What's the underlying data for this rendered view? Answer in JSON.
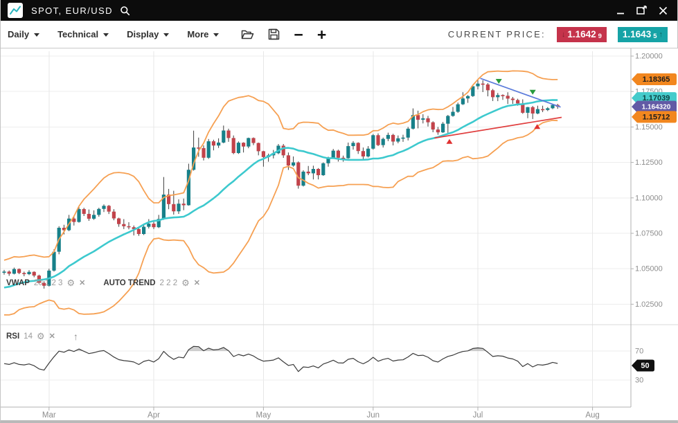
{
  "window": {
    "title": "SPOT, EUR/USD",
    "controls": {
      "minimize": "minimize",
      "popout": "popout",
      "close": "close"
    }
  },
  "toolbar": {
    "menus": [
      "Daily",
      "Technical",
      "Display",
      "More"
    ],
    "icons": [
      "open-file",
      "save",
      "zoom-out",
      "zoom-in"
    ],
    "current_price_label": "CURRENT PRICE:",
    "bid": {
      "main": "1.1642",
      "sub": "9",
      "color": "#C5334B",
      "arrow": "down"
    },
    "ask": {
      "main": "1.1643",
      "sub": "5",
      "color": "#16A3A6",
      "arrow": "up"
    }
  },
  "chart_data": {
    "type": "candlestick",
    "symbol": "SPOT, EUR/USD",
    "timeframe": "Daily",
    "y_axis": {
      "ticks": [
        "1.20000",
        "1.17500",
        "1.15000",
        "1.12500",
        "1.10000",
        "1.07500",
        "1.05000",
        "1.02500"
      ]
    },
    "x_axis": {
      "months": [
        {
          "label": "Mar",
          "i": 9
        },
        {
          "label": "Apr",
          "i": 30
        },
        {
          "label": "May",
          "i": 52
        },
        {
          "label": "Jun",
          "i": 74
        },
        {
          "label": "Jul",
          "i": 95
        },
        {
          "label": "Aug",
          "i": 118
        }
      ]
    },
    "candles": {
      "bull_color": "#178089",
      "bear_color": "#C2434B",
      "wick_color": "#3C3C3C",
      "seed_closes": [
        1.043,
        1.0352,
        1.0273,
        1.0221,
        1.0305,
        1.0338,
        1.039,
        1.0282,
        1.03,
        1.0332,
        1.0365,
        1.0398,
        1.0305,
        1.0238,
        1.0412,
        1.0465,
        1.0442,
        1.048,
        1.0493,
        1.0475
      ],
      "ohlc": [
        [
          1.0472,
          1.0492,
          1.0458,
          1.048
        ],
        [
          1.048,
          1.0488,
          1.045,
          1.0465
        ],
        [
          1.0465,
          1.0508,
          1.046,
          1.0498
        ],
        [
          1.0498,
          1.0502,
          1.0462,
          1.047
        ],
        [
          1.047,
          1.048,
          1.0447,
          1.0462
        ],
        [
          1.0462,
          1.049,
          1.0455,
          1.0478
        ],
        [
          1.0478,
          1.0482,
          1.044,
          1.0452
        ],
        [
          1.0452,
          1.0458,
          1.0392,
          1.04
        ],
        [
          1.04,
          1.0412,
          1.036,
          1.038
        ],
        [
          1.038,
          1.05,
          1.0375,
          1.0487
        ],
        [
          1.0487,
          1.0637,
          1.048,
          1.062
        ],
        [
          1.062,
          1.08,
          1.0602,
          1.0789
        ],
        [
          1.0789,
          1.081,
          1.0742,
          1.0772
        ],
        [
          1.0772,
          1.088,
          1.0765,
          1.0854
        ],
        [
          1.0854,
          1.0875,
          1.0805,
          1.083
        ],
        [
          1.083,
          1.0935,
          1.0825,
          1.0921
        ],
        [
          1.0921,
          1.093,
          1.0872,
          1.0887
        ],
        [
          1.0887,
          1.0918,
          1.0838,
          1.0853
        ],
        [
          1.0853,
          1.0912,
          1.0845,
          1.088
        ],
        [
          1.088,
          1.093,
          1.0867,
          1.0922
        ],
        [
          1.0922,
          1.0954,
          1.09,
          1.0944
        ],
        [
          1.0944,
          1.095,
          1.0886,
          1.0903
        ],
        [
          1.0903,
          1.092,
          1.0842,
          1.0855
        ],
        [
          1.0855,
          1.086,
          1.0796,
          1.0815
        ],
        [
          1.0815,
          1.085,
          1.078,
          1.08
        ],
        [
          1.08,
          1.0828,
          1.0778,
          1.0793
        ],
        [
          1.0793,
          1.0805,
          1.0735,
          1.078
        ],
        [
          1.078,
          1.0785,
          1.0732,
          1.0745
        ],
        [
          1.0745,
          1.081,
          1.0738,
          1.0796
        ],
        [
          1.0796,
          1.085,
          1.0784,
          1.0818
        ],
        [
          1.0818,
          1.0832,
          1.078,
          1.0793
        ],
        [
          1.0793,
          1.088,
          1.0787,
          1.0851
        ],
        [
          1.0851,
          1.1147,
          1.0845,
          1.1023
        ],
        [
          1.1023,
          1.1063,
          1.092,
          1.0956
        ],
        [
          1.0956,
          1.105,
          1.0882,
          1.0905
        ],
        [
          1.0905,
          1.099,
          1.0887,
          1.0959
        ],
        [
          1.0959,
          1.0995,
          1.0913,
          1.0948
        ],
        [
          1.0948,
          1.1241,
          1.0945,
          1.1198
        ],
        [
          1.1198,
          1.1474,
          1.1192,
          1.1355
        ],
        [
          1.1355,
          1.1425,
          1.129,
          1.1351
        ],
        [
          1.1351,
          1.137,
          1.1264,
          1.1283
        ],
        [
          1.1283,
          1.1415,
          1.1275,
          1.1399
        ],
        [
          1.1399,
          1.141,
          1.1335,
          1.1369
        ],
        [
          1.1369,
          1.142,
          1.1352,
          1.139
        ],
        [
          1.139,
          1.151,
          1.1385,
          1.1475
        ],
        [
          1.1475,
          1.1488,
          1.1395,
          1.1422
        ],
        [
          1.1422,
          1.144,
          1.1308,
          1.1316
        ],
        [
          1.1316,
          1.1398,
          1.131,
          1.1389
        ],
        [
          1.1389,
          1.1392,
          1.132,
          1.1362
        ],
        [
          1.1362,
          1.1425,
          1.135,
          1.1422
        ],
        [
          1.1422,
          1.1426,
          1.1372,
          1.1387
        ],
        [
          1.1387,
          1.139,
          1.13,
          1.1329
        ],
        [
          1.1329,
          1.1332,
          1.122,
          1.1288
        ],
        [
          1.1288,
          1.1312,
          1.1255,
          1.13
        ],
        [
          1.13,
          1.1338,
          1.1278,
          1.1315
        ],
        [
          1.1315,
          1.138,
          1.1308,
          1.1368
        ],
        [
          1.1368,
          1.138,
          1.1282,
          1.13
        ],
        [
          1.13,
          1.132,
          1.1197,
          1.1228
        ],
        [
          1.1228,
          1.1292,
          1.122,
          1.125
        ],
        [
          1.125,
          1.1257,
          1.1065,
          1.1086
        ],
        [
          1.1086,
          1.1195,
          1.108,
          1.1185
        ],
        [
          1.1185,
          1.1225,
          1.116,
          1.1173
        ],
        [
          1.1173,
          1.1227,
          1.113,
          1.1204
        ],
        [
          1.1204,
          1.121,
          1.113,
          1.116
        ],
        [
          1.116,
          1.125,
          1.1155,
          1.1244
        ],
        [
          1.1244,
          1.129,
          1.122,
          1.1284
        ],
        [
          1.1284,
          1.1345,
          1.128,
          1.1333
        ],
        [
          1.1333,
          1.134,
          1.1256,
          1.1283
        ],
        [
          1.1283,
          1.1298,
          1.1255,
          1.128
        ],
        [
          1.128,
          1.139,
          1.1276,
          1.1365
        ],
        [
          1.1365,
          1.14,
          1.134,
          1.1388
        ],
        [
          1.1388,
          1.1392,
          1.131,
          1.133
        ],
        [
          1.133,
          1.1355,
          1.1272,
          1.1292
        ],
        [
          1.1292,
          1.1365,
          1.1285,
          1.1347
        ],
        [
          1.1347,
          1.145,
          1.134,
          1.1442
        ],
        [
          1.1442,
          1.1455,
          1.1365,
          1.1372
        ],
        [
          1.1372,
          1.1425,
          1.1355,
          1.1416
        ],
        [
          1.1416,
          1.146,
          1.14,
          1.1444
        ],
        [
          1.1444,
          1.1452,
          1.137,
          1.1397
        ],
        [
          1.1397,
          1.144,
          1.1385,
          1.142
        ],
        [
          1.142,
          1.1445,
          1.1395,
          1.1425
        ],
        [
          1.1425,
          1.15,
          1.1405,
          1.1488
        ],
        [
          1.1488,
          1.1631,
          1.1482,
          1.1584
        ],
        [
          1.1584,
          1.1615,
          1.149,
          1.1551
        ],
        [
          1.1551,
          1.159,
          1.1525,
          1.1561
        ],
        [
          1.1561,
          1.1578,
          1.1503,
          1.1533
        ],
        [
          1.1533,
          1.154,
          1.1463,
          1.1482
        ],
        [
          1.1482,
          1.15,
          1.1445,
          1.1462
        ],
        [
          1.1462,
          1.1535,
          1.1458,
          1.1523
        ],
        [
          1.1523,
          1.1585,
          1.1448,
          1.1578
        ],
        [
          1.1578,
          1.1641,
          1.1572,
          1.1607
        ],
        [
          1.1607,
          1.1672,
          1.16,
          1.166
        ],
        [
          1.166,
          1.1745,
          1.1655,
          1.1701
        ],
        [
          1.1701,
          1.1725,
          1.167,
          1.1718
        ],
        [
          1.1718,
          1.1788,
          1.1712,
          1.1787
        ],
        [
          1.1787,
          1.183,
          1.1765,
          1.1806
        ],
        [
          1.1806,
          1.1829,
          1.1746,
          1.18
        ],
        [
          1.18,
          1.181,
          1.1716,
          1.1759
        ],
        [
          1.1759,
          1.1768,
          1.1683,
          1.171
        ],
        [
          1.171,
          1.174,
          1.1682,
          1.1725
        ],
        [
          1.1725,
          1.173,
          1.1691,
          1.172
        ],
        [
          1.172,
          1.1745,
          1.1662,
          1.17
        ],
        [
          1.17,
          1.1712,
          1.1663,
          1.169
        ],
        [
          1.169,
          1.1699,
          1.165,
          1.1666
        ],
        [
          1.1666,
          1.1695,
          1.1593,
          1.16
        ],
        [
          1.16,
          1.1642,
          1.1562,
          1.164
        ],
        [
          1.164,
          1.1648,
          1.1556,
          1.1595
        ],
        [
          1.1595,
          1.165,
          1.159,
          1.1626
        ],
        [
          1.1626,
          1.165,
          1.1605,
          1.162
        ],
        [
          1.162,
          1.164,
          1.1612,
          1.1632
        ],
        [
          1.1632,
          1.166,
          1.1626,
          1.1655
        ],
        [
          1.1655,
          1.1663,
          1.1628,
          1.1643
        ]
      ]
    },
    "indicators": {
      "vwap": {
        "name": "VWAP",
        "params": "20 1 2 3",
        "period": 20,
        "band_mult": 2.3,
        "line_color": "#3DC9CE",
        "band_color": "#F6A052"
      },
      "auto_trend": {
        "name": "AUTO TREND",
        "params": "2 2 2",
        "lines": [
          {
            "i1": 95.5,
            "p1": 1.1843,
            "i2": 111.6,
            "p2": 1.164,
            "color": "#5B7BDB"
          },
          {
            "i1": 86.3,
            "p1": 1.1422,
            "i2": 111.8,
            "p2": 1.1568,
            "color": "#E03E3E"
          }
        ],
        "markers": [
          {
            "dir": "down",
            "i": 99.2,
            "p": 1.1822,
            "color": "#279A3D"
          },
          {
            "dir": "down",
            "i": 106.0,
            "p": 1.1745,
            "color": "#279A3D"
          },
          {
            "dir": "up",
            "i": 89.3,
            "p": 1.1398,
            "color": "#E03030"
          },
          {
            "dir": "up",
            "i": 106.9,
            "p": 1.1503,
            "color": "#E03030"
          }
        ]
      },
      "rsi": {
        "name": "RSI",
        "params": "14",
        "period": 14,
        "levels": [
          70,
          30
        ],
        "axis_labels": [
          "70",
          "50",
          "30"
        ],
        "axis_values": [
          70,
          50,
          30
        ],
        "badge": {
          "label": "50",
          "value": 50,
          "bg": "#101010",
          "fg": "#ffffff"
        },
        "line_color": "#3a3a3a",
        "fill_color": "#a0a0a0"
      }
    },
    "price_badges": [
      {
        "label": "1.18365",
        "price": 1.18365,
        "bg": "#F2871F",
        "fg": "#1d1d1d"
      },
      {
        "label": "1.17039",
        "price": 1.17039,
        "bg": "#45CBCB",
        "fg": "#0c4040"
      },
      {
        "label": "1.164320",
        "price": 1.16432,
        "bg": "#625AA5",
        "fg": "#ffffff"
      },
      {
        "label": "1.15712",
        "price": 1.15712,
        "bg": "#F2871F",
        "fg": "#1d1d1d"
      }
    ]
  }
}
